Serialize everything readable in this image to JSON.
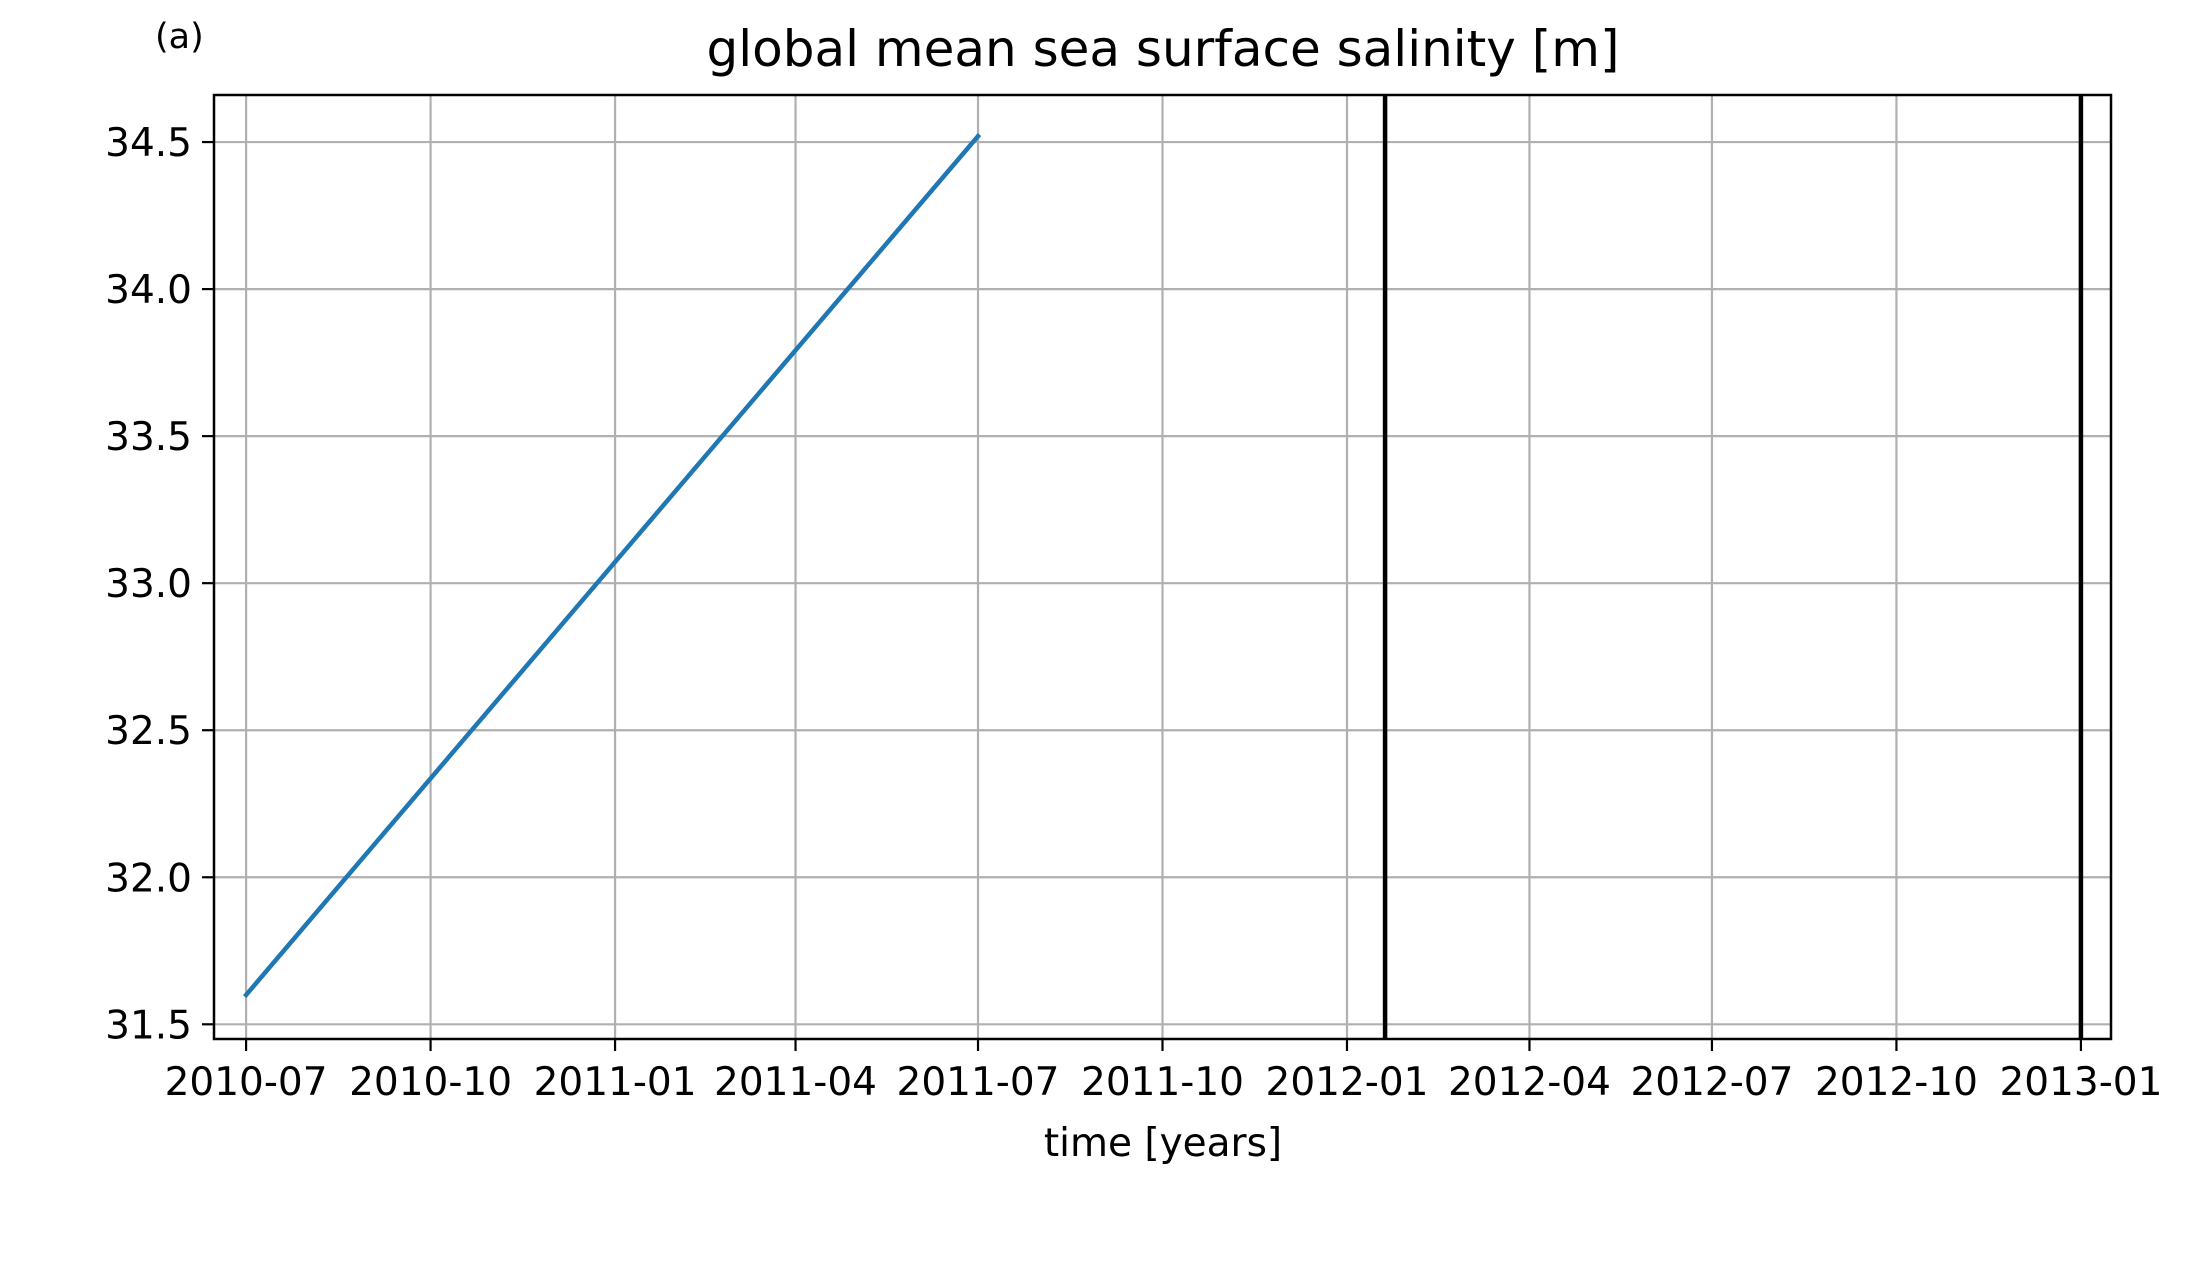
{
  "panel_label": "(a)",
  "chart_data": {
    "type": "line",
    "title": "global mean sea surface salinity [m]",
    "xlabel": "time [years]",
    "ylabel": "",
    "x_type": "date",
    "xlim": [
      "2010-06-15",
      "2013-01-16"
    ],
    "ylim": [
      31.45,
      34.66
    ],
    "x_ticks": [
      "2010-07-01",
      "2010-10-01",
      "2011-01-01",
      "2011-04-01",
      "2011-07-01",
      "2011-10-01",
      "2012-01-01",
      "2012-04-01",
      "2012-07-01",
      "2012-10-01",
      "2013-01-01"
    ],
    "x_tick_labels": [
      "2010-07",
      "2010-10",
      "2011-01",
      "2011-04",
      "2011-07",
      "2011-10",
      "2012-01",
      "2012-04",
      "2012-07",
      "2012-10",
      "2013-01"
    ],
    "y_ticks": [
      31.5,
      32.0,
      32.5,
      33.0,
      33.5,
      34.0,
      34.5
    ],
    "y_tick_labels": [
      "31.5",
      "32.0",
      "32.5",
      "33.0",
      "33.5",
      "34.0",
      "34.5"
    ],
    "grid": true,
    "series": [
      {
        "color": "#1f77b4",
        "points": [
          {
            "x": "2010-07-01",
            "y": 31.6
          },
          {
            "x": "2011-07-01",
            "y": 34.52
          }
        ]
      }
    ],
    "vlines": [
      {
        "x": "2012-01-20",
        "color": "#000000"
      },
      {
        "x": "2013-01-01",
        "color": "#000000"
      }
    ],
    "colors": {
      "grid": "#b0b0b0",
      "axes": "#000000"
    }
  }
}
